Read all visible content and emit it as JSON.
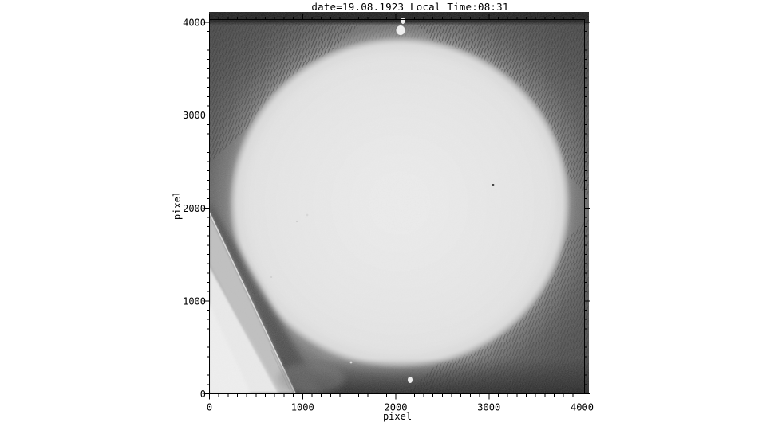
{
  "chart_data": {
    "type": "heatmap",
    "subtype": "grayscale-astronomical-image",
    "title": "date=19.08.1923 Local Time:08:31",
    "xlabel": "pixel",
    "ylabel": "pixel",
    "xlim": [
      0,
      4025
    ],
    "ylim": [
      0,
      4030
    ],
    "x_ticks": [
      0,
      1000,
      2000,
      3000,
      4000
    ],
    "y_ticks": [
      0,
      1000,
      2000,
      3000,
      4000
    ],
    "minor_tick_step": 100,
    "grid": false,
    "legend": false,
    "image_content": {
      "description": "Digitized photographic plate of the full solar disk: bright near-white circle on dark scanned-plate background with diagonal scanner moire streaks in the corners",
      "solar_disk": {
        "center_x": 2045,
        "center_y": 2050,
        "radius": 1795,
        "units": "pixel"
      },
      "dark_exposure_band": {
        "location": "top",
        "y_from": 3960,
        "y_to": 4100
      },
      "overexposed_corner_wedge": {
        "corner": "bottom-left",
        "edge_from_xy": [
          0,
          1955
        ],
        "edge_to_xy": [
          925,
          0
        ]
      },
      "defects": [
        {
          "kind": "bright-spot",
          "x": 2075,
          "y": 4010
        },
        {
          "kind": "bright-spot",
          "x": 2055,
          "y": 3905
        },
        {
          "kind": "bright-spot",
          "x": 2155,
          "y": 145
        },
        {
          "kind": "dark-speck",
          "x": 3045,
          "y": 2245
        }
      ]
    },
    "colors": {
      "frame": "#000000",
      "page_background": "#ffffff",
      "plate_background": "#414141",
      "solar_disk": "#e9e9e9",
      "top_band": "#0c0c0c",
      "corner_wedge": "#ededed"
    }
  }
}
